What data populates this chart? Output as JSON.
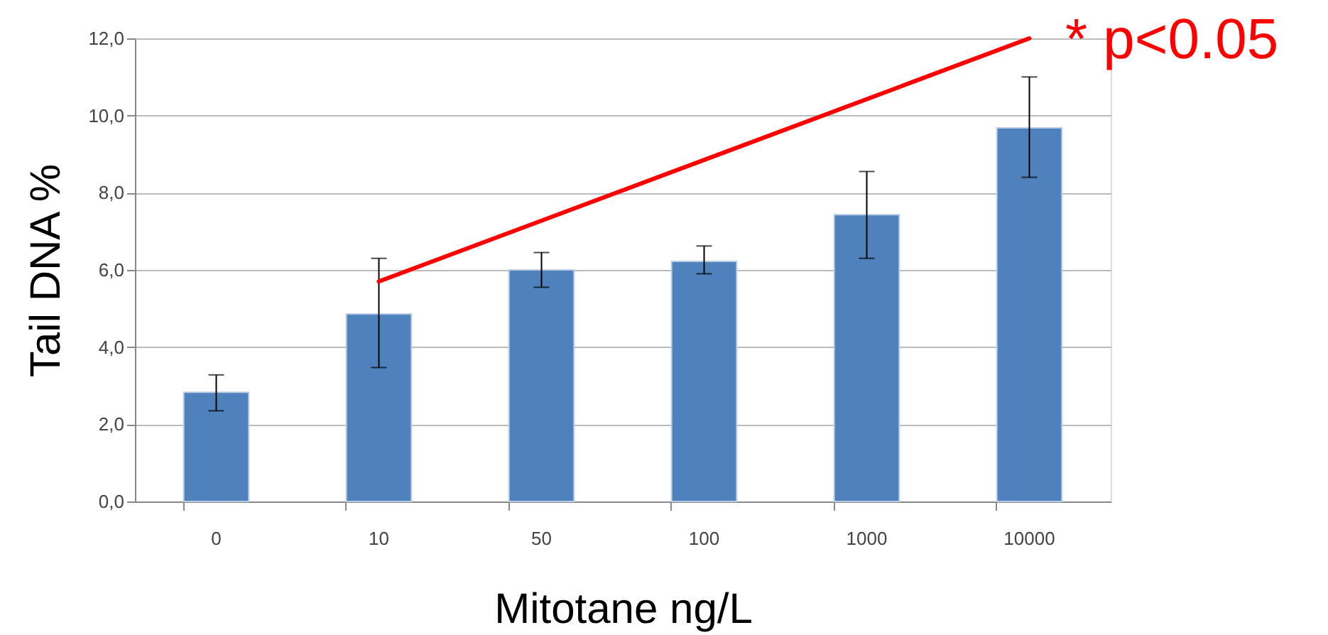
{
  "chart_data": {
    "type": "bar",
    "xlabel": "Mitotane  ng/L",
    "ylabel": "Tail DNA %",
    "categories": [
      "0",
      "10",
      "50",
      "100",
      "1000",
      "10000"
    ],
    "series": [
      {
        "color": "#4f81bd",
        "values": [
          2.83,
          4.86,
          6.0,
          6.22,
          7.43,
          9.68
        ],
        "errors": [
          [
            2.35,
            3.28
          ],
          [
            3.47,
            6.3
          ],
          [
            5.55,
            6.45
          ],
          [
            5.9,
            6.62
          ],
          [
            6.3,
            8.55
          ],
          [
            8.4,
            11.0
          ]
        ]
      },
      {
        "type": "line",
        "color": "#ff0000",
        "x": [
          "10",
          "10000"
        ],
        "values": [
          5.7,
          12.0
        ]
      }
    ],
    "ylim": [
      0,
      12
    ],
    "yticks": [
      {
        "value": 0,
        "label": "0,0"
      },
      {
        "value": 2,
        "label": "2,0"
      },
      {
        "value": 4,
        "label": "4,0"
      },
      {
        "value": 6,
        "label": "6,0"
      },
      {
        "value": 8,
        "label": "8,0"
      },
      {
        "value": 10,
        "label": "10,0"
      },
      {
        "value": 12,
        "label": "12,0"
      }
    ],
    "grid": "y",
    "line_style": "solid",
    "marker": "none",
    "annotations": [
      "* p<0.05"
    ]
  }
}
